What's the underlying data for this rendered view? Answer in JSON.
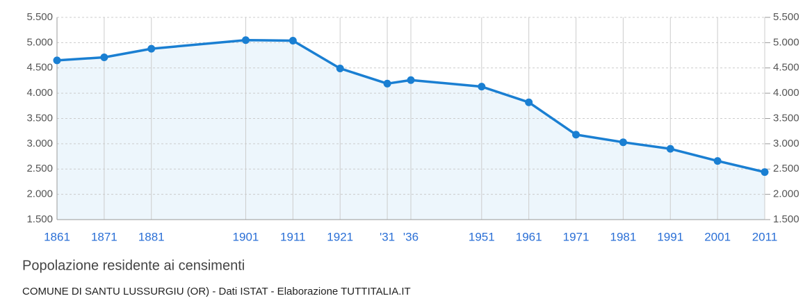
{
  "chart_data": {
    "type": "line",
    "title": "Popolazione residente ai censimenti",
    "subtitle": "COMUNE DI SANTU LUSSURGIU (OR) - Dati ISTAT - Elaborazione TUTTITALIA.IT",
    "x": [
      1861,
      1871,
      1881,
      1901,
      1911,
      1921,
      1931,
      1936,
      1951,
      1961,
      1971,
      1981,
      1991,
      2001,
      2011
    ],
    "series": [
      {
        "color": "#1a7fd2",
        "values": [
          4650,
          4710,
          4880,
          5050,
          5040,
          4490,
          4190,
          4260,
          4130,
          3820,
          3180,
          3030,
          2900,
          2660,
          2440
        ]
      }
    ],
    "area_color": "#eaf4fc",
    "xlim": [
      1861,
      2011
    ],
    "xticks": [
      1861,
      1871,
      1881,
      1901,
      1911,
      1921,
      {
        "value": 1931,
        "label": "'31"
      },
      {
        "value": 1936,
        "label": "'36"
      },
      1951,
      1961,
      1971,
      1981,
      1991,
      2001,
      2011
    ],
    "ylim": [
      1500,
      5500
    ],
    "yticks": [
      {
        "value": 1500,
        "label": "1.500"
      },
      {
        "value": 2000,
        "label": "2.000"
      },
      {
        "value": 2500,
        "label": "2.500"
      },
      {
        "value": 3000,
        "label": "3.000"
      },
      {
        "value": 3500,
        "label": "3.500"
      },
      {
        "value": 4000,
        "label": "4.000"
      },
      {
        "value": 4500,
        "label": "4.500"
      },
      {
        "value": 5000,
        "label": "5.000"
      },
      {
        "value": 5500,
        "label": "5.500"
      }
    ],
    "grid": true
  }
}
